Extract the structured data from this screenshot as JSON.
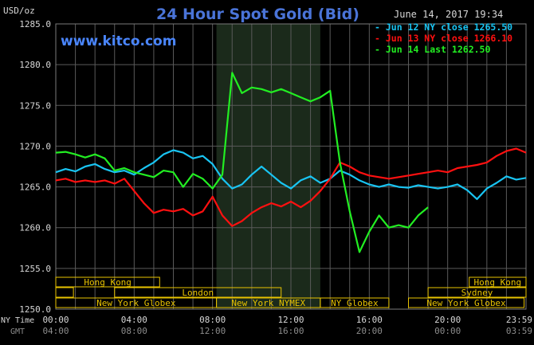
{
  "header": {
    "unit_label": "USD/oz",
    "title": "24 Hour Spot Gold (Bid)",
    "timestamp": "June 14, 2017 19:34",
    "brand": "www.kitco.com"
  },
  "axis_rows": {
    "ny_label": "NY Time",
    "gmt_label": "GMT"
  },
  "colors": {
    "jun12": "#19c4f2",
    "jun13": "#ff1010",
    "jun14": "#22ee22",
    "session": "#e8c300",
    "grid": "#5a5a5a"
  },
  "sessions": [
    {
      "label": "Hong Kong",
      "row": 0,
      "start": 0,
      "end": 5.3,
      "show": true
    },
    {
      "label": "Hong Kong",
      "row": 0,
      "start": 21.1,
      "end": 24,
      "show": true
    },
    {
      "label": "",
      "row": 1,
      "start": 0,
      "end": 0.9,
      "show": false
    },
    {
      "label": "London",
      "row": 1,
      "start": 3.0,
      "end": 11.5,
      "show": true
    },
    {
      "label": "Sydney",
      "row": 1,
      "start": 19.0,
      "end": 24,
      "show": true
    },
    {
      "label": "New York Globex",
      "row": 2,
      "start": 0,
      "end": 8.2,
      "show": true
    },
    {
      "label": "New York NYMEX",
      "row": 2,
      "start": 8.2,
      "end": 13.5,
      "show": true
    },
    {
      "label": "NY Globex",
      "row": 2,
      "start": 13.5,
      "end": 17.0,
      "show": true
    },
    {
      "label": "New York Globex",
      "row": 2,
      "start": 18.0,
      "end": 23.9,
      "show": true
    }
  ],
  "chart_data": {
    "type": "line",
    "title": "24 Hour Spot Gold (Bid)",
    "ylabel": "USD/oz",
    "ylim": [
      1250,
      1285
    ],
    "xlim": [
      0,
      24
    ],
    "y_ticks": [
      "1285.0",
      "1280.0",
      "1275.0",
      "1270.0",
      "1265.0",
      "1260.0",
      "1255.0",
      "1250.0"
    ],
    "y_tick_values": [
      1285,
      1280,
      1275,
      1270,
      1265,
      1260,
      1255,
      1250
    ],
    "x_ticks_ny": [
      "00:00",
      "04:00",
      "08:00",
      "12:00",
      "16:00",
      "20:00",
      "23:59"
    ],
    "x_ticks_gmt": [
      "04:00",
      "08:00",
      "12:00",
      "16:00",
      "20:00",
      "00:00",
      "03:59"
    ],
    "x_tick_values": [
      0,
      4,
      8,
      12,
      16,
      20,
      24
    ],
    "grid": true,
    "legend_position": "top-right",
    "shaded_hours": [
      8.2,
      13.5
    ],
    "series": [
      {
        "name": "Jun 12 NY close 1265.50",
        "color": "#19c4f2",
        "x": [
          0,
          0.5,
          1,
          1.5,
          2,
          2.5,
          3,
          3.5,
          4,
          4.5,
          5,
          5.5,
          6,
          6.5,
          7,
          7.5,
          8,
          8.5,
          9,
          9.5,
          10,
          10.5,
          11,
          11.5,
          12,
          12.5,
          13,
          13.5,
          14,
          14.5,
          15,
          15.5,
          16,
          16.5,
          17,
          17.5,
          18,
          18.5,
          19,
          19.5,
          20,
          20.5,
          21,
          21.5,
          22,
          22.5,
          23,
          23.5,
          24
        ],
        "y": [
          1266.8,
          1267.2,
          1266.9,
          1267.5,
          1267.8,
          1267.2,
          1266.8,
          1267.0,
          1266.5,
          1267.3,
          1268.0,
          1269.0,
          1269.5,
          1269.2,
          1268.5,
          1268.8,
          1267.8,
          1266.0,
          1264.8,
          1265.3,
          1266.5,
          1267.5,
          1266.5,
          1265.5,
          1264.8,
          1265.8,
          1266.3,
          1265.5,
          1266.0,
          1267.0,
          1266.5,
          1265.8,
          1265.3,
          1265.0,
          1265.3,
          1265.0,
          1264.9,
          1265.2,
          1265.0,
          1264.8,
          1265.0,
          1265.3,
          1264.6,
          1263.5,
          1264.8,
          1265.5,
          1266.3,
          1265.9,
          1266.1
        ]
      },
      {
        "name": "Jun 13 NY close 1266.10",
        "color": "#ff1010",
        "x": [
          0,
          0.5,
          1,
          1.5,
          2,
          2.5,
          3,
          3.5,
          4,
          4.5,
          5,
          5.5,
          6,
          6.5,
          7,
          7.5,
          8,
          8.5,
          9,
          9.5,
          10,
          10.5,
          11,
          11.5,
          12,
          12.5,
          13,
          13.5,
          14,
          14.5,
          15,
          15.5,
          16,
          16.5,
          17,
          17.5,
          18,
          18.5,
          19,
          19.5,
          20,
          20.5,
          21,
          21.5,
          22,
          22.5,
          23,
          23.5,
          24
        ],
        "y": [
          1265.8,
          1266.0,
          1265.6,
          1265.8,
          1265.6,
          1265.8,
          1265.4,
          1266.0,
          1264.5,
          1263.0,
          1261.8,
          1262.2,
          1262.0,
          1262.3,
          1261.5,
          1262.0,
          1263.8,
          1261.5,
          1260.2,
          1260.8,
          1261.8,
          1262.5,
          1263.0,
          1262.6,
          1263.2,
          1262.5,
          1263.3,
          1264.5,
          1266.0,
          1268.0,
          1267.5,
          1266.8,
          1266.4,
          1266.2,
          1266.0,
          1266.2,
          1266.4,
          1266.6,
          1266.8,
          1267.0,
          1266.8,
          1267.3,
          1267.5,
          1267.7,
          1268.0,
          1268.8,
          1269.4,
          1269.7,
          1269.2
        ]
      },
      {
        "name": "Jun 14 Last 1262.50",
        "color": "#22ee22",
        "x": [
          0,
          0.5,
          1,
          1.5,
          2,
          2.5,
          3,
          3.5,
          4,
          4.5,
          5,
          5.5,
          6,
          6.5,
          7,
          7.5,
          8,
          8.5,
          9,
          9.5,
          10,
          10.5,
          11,
          11.5,
          12,
          12.5,
          13,
          13.5,
          14,
          14.5,
          15,
          15.5,
          16,
          16.5,
          17,
          17.5,
          18,
          18.5,
          19
        ],
        "y": [
          1269.2,
          1269.3,
          1269.0,
          1268.6,
          1269.0,
          1268.5,
          1267.0,
          1267.3,
          1266.8,
          1266.5,
          1266.2,
          1267.0,
          1266.8,
          1265.0,
          1266.6,
          1266.0,
          1264.8,
          1266.5,
          1279.0,
          1276.5,
          1277.2,
          1277.0,
          1276.6,
          1277.0,
          1276.5,
          1276.0,
          1275.5,
          1276.0,
          1276.8,
          1268.0,
          1262.0,
          1257.0,
          1259.5,
          1261.5,
          1260.0,
          1260.3,
          1260.0,
          1261.5,
          1262.5
        ]
      }
    ]
  }
}
